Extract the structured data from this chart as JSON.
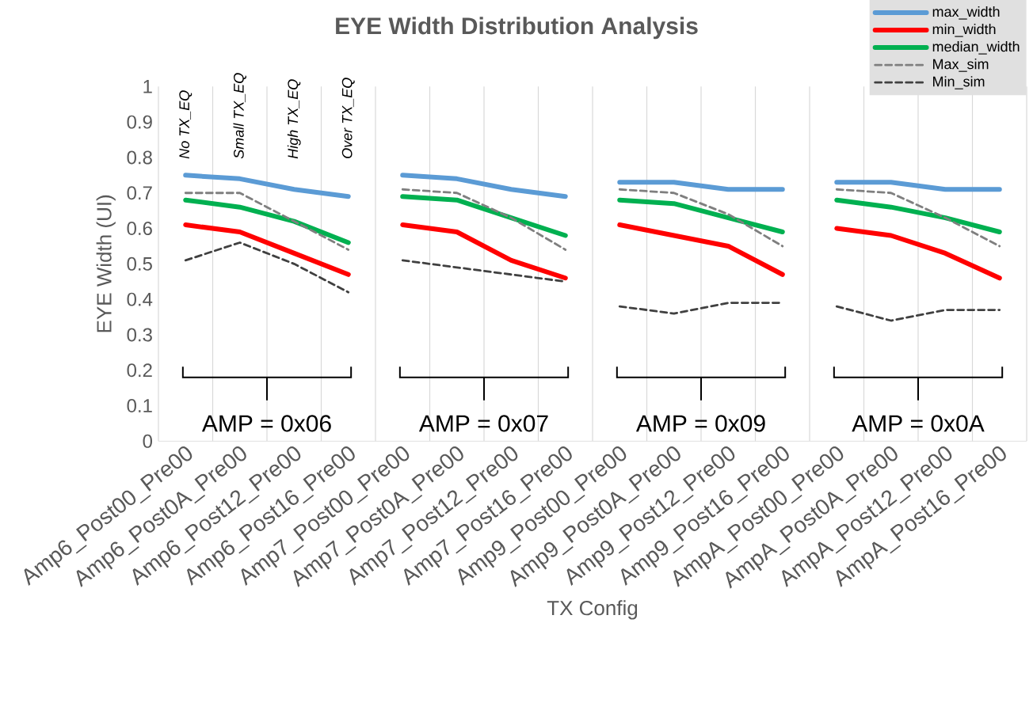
{
  "chart_data": {
    "type": "line",
    "title": "EYE Width Distribution Analysis",
    "xlabel": "TX Config",
    "ylabel": "EYE Width (UI)",
    "categories": [
      "Amp6_Post00_Pre00",
      "Amp6_Post0A_Pre00",
      "Amp6_Post12_Pre00",
      "Amp6_Post16_Pre00",
      "Amp7_Post00_Pre00",
      "Amp7_Post0A_Pre00",
      "Amp7_Post12_Pre00",
      "Amp7_Post16_Pre00",
      "Amp9_Post00_Pre00",
      "Amp9_Post0A_Pre00",
      "Amp9_Post12_Pre00",
      "Amp9_Post16_Pre00",
      "AmpA_Post00_Pre00",
      "AmpA_Post0A_Pre00",
      "AmpA_Post12_Pre00",
      "AmpA_Post16_Pre00"
    ],
    "series": [
      {
        "name": "max_width",
        "color": "#5b9bd5",
        "line_style": "solid",
        "values": [
          0.75,
          0.74,
          0.71,
          0.69,
          0.75,
          0.74,
          0.71,
          0.69,
          0.73,
          0.73,
          0.71,
          0.71,
          0.73,
          0.73,
          0.71,
          0.71
        ]
      },
      {
        "name": "min_width",
        "color": "#ff0000",
        "line_style": "solid",
        "values": [
          0.61,
          0.59,
          0.53,
          0.47,
          0.61,
          0.59,
          0.51,
          0.46,
          0.61,
          0.58,
          0.55,
          0.47,
          0.6,
          0.58,
          0.53,
          0.46
        ]
      },
      {
        "name": "median_width",
        "color": "#00b050",
        "line_style": "solid",
        "values": [
          0.68,
          0.66,
          0.62,
          0.56,
          0.69,
          0.68,
          0.63,
          0.58,
          0.68,
          0.67,
          0.63,
          0.59,
          0.68,
          0.66,
          0.63,
          0.59
        ]
      },
      {
        "name": "Max_sim",
        "color": "#7f7f7f",
        "line_style": "dashed",
        "values": [
          0.7,
          0.7,
          0.62,
          0.54,
          0.71,
          0.7,
          0.63,
          0.54,
          0.71,
          0.7,
          0.64,
          0.55,
          0.71,
          0.7,
          0.63,
          0.55
        ]
      },
      {
        "name": "Min_sim",
        "color": "#404040",
        "line_style": "dashed",
        "values": [
          0.51,
          0.56,
          0.5,
          0.42,
          0.51,
          0.49,
          0.47,
          0.45,
          0.38,
          0.36,
          0.39,
          0.39,
          0.38,
          0.34,
          0.37,
          0.37
        ]
      }
    ],
    "ylim": [
      0,
      1
    ],
    "yticks": [
      0,
      0.1,
      0.2,
      0.3,
      0.4,
      0.5,
      0.6,
      0.7,
      0.8,
      0.9,
      1
    ],
    "grid": "x",
    "legend": "top right",
    "marker": "none",
    "annotations": [
      "No TX_EQ",
      "Small TX_EQ",
      "High TX_EQ",
      "Over TX_EQ",
      "AMP = 0x06",
      "AMP = 0x07",
      "AMP = 0x09",
      "AMP = 0x0A"
    ]
  }
}
